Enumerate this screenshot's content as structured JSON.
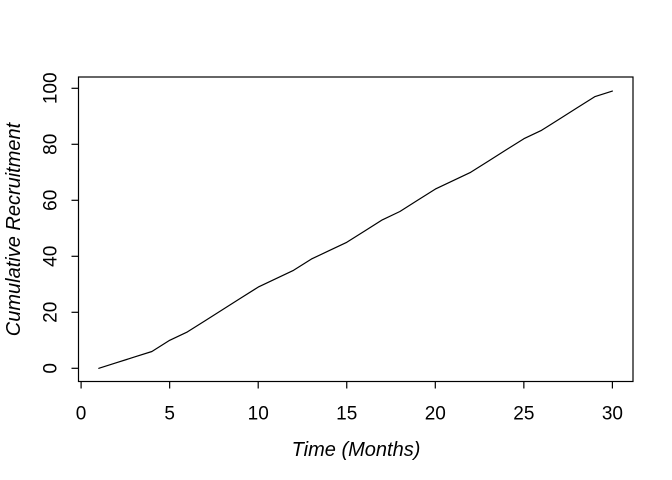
{
  "chart_data": {
    "type": "line",
    "title": "",
    "xlabel": "Time (Months)",
    "ylabel": "Cumulative Recruitment",
    "x": [
      1,
      2,
      3,
      4,
      5,
      6,
      7,
      8,
      9,
      10,
      11,
      12,
      13,
      14,
      15,
      16,
      17,
      18,
      19,
      20,
      21,
      22,
      23,
      24,
      25,
      26,
      27,
      28,
      29,
      30
    ],
    "values": [
      0,
      2,
      4,
      6,
      10,
      13,
      17,
      21,
      25,
      29,
      32,
      35,
      39,
      42,
      45,
      49,
      53,
      56,
      60,
      64,
      67,
      70,
      74,
      78,
      82,
      85,
      89,
      93,
      97,
      99
    ],
    "xticks": [
      0,
      5,
      10,
      15,
      20,
      25,
      30
    ],
    "yticks": [
      0,
      20,
      40,
      60,
      80,
      100
    ],
    "xlim": [
      0,
      31
    ],
    "ylim": [
      0,
      100
    ],
    "grid": false,
    "legend": "none",
    "line_color": "#000000",
    "axis_color": "#000000",
    "text_color": "#000000",
    "background_color": "#ffffff"
  }
}
